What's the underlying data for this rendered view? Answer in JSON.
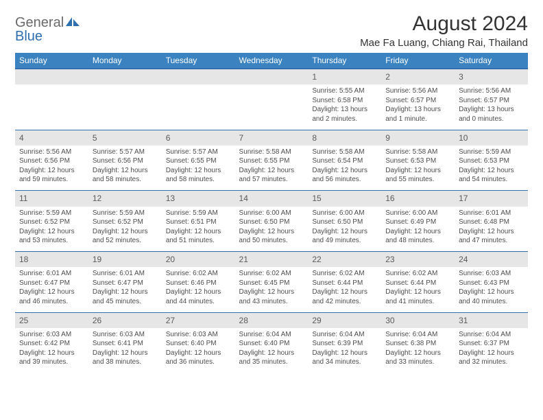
{
  "brand": {
    "part1": "General",
    "part2": "Blue"
  },
  "title": "August 2024",
  "location": "Mae Fa Luang, Chiang Rai, Thailand",
  "colors": {
    "header_bg": "#3b83c0",
    "header_border": "#2f6fb0",
    "row_shade": "#e6e6e6",
    "text": "#4d4d4d",
    "brand_gray": "#6a6a6a",
    "brand_blue": "#2f6fb0"
  },
  "weekdays": [
    "Sunday",
    "Monday",
    "Tuesday",
    "Wednesday",
    "Thursday",
    "Friday",
    "Saturday"
  ],
  "weeks": [
    {
      "nums": [
        "",
        "",
        "",
        "",
        "1",
        "2",
        "3"
      ],
      "cells": [
        null,
        null,
        null,
        null,
        {
          "sunrise": "5:55 AM",
          "sunset": "6:58 PM",
          "daylight": "13 hours and 2 minutes."
        },
        {
          "sunrise": "5:56 AM",
          "sunset": "6:57 PM",
          "daylight": "13 hours and 1 minute."
        },
        {
          "sunrise": "5:56 AM",
          "sunset": "6:57 PM",
          "daylight": "13 hours and 0 minutes."
        }
      ]
    },
    {
      "nums": [
        "4",
        "5",
        "6",
        "7",
        "8",
        "9",
        "10"
      ],
      "cells": [
        {
          "sunrise": "5:56 AM",
          "sunset": "6:56 PM",
          "daylight": "12 hours and 59 minutes."
        },
        {
          "sunrise": "5:57 AM",
          "sunset": "6:56 PM",
          "daylight": "12 hours and 58 minutes."
        },
        {
          "sunrise": "5:57 AM",
          "sunset": "6:55 PM",
          "daylight": "12 hours and 58 minutes."
        },
        {
          "sunrise": "5:58 AM",
          "sunset": "6:55 PM",
          "daylight": "12 hours and 57 minutes."
        },
        {
          "sunrise": "5:58 AM",
          "sunset": "6:54 PM",
          "daylight": "12 hours and 56 minutes."
        },
        {
          "sunrise": "5:58 AM",
          "sunset": "6:53 PM",
          "daylight": "12 hours and 55 minutes."
        },
        {
          "sunrise": "5:59 AM",
          "sunset": "6:53 PM",
          "daylight": "12 hours and 54 minutes."
        }
      ]
    },
    {
      "nums": [
        "11",
        "12",
        "13",
        "14",
        "15",
        "16",
        "17"
      ],
      "cells": [
        {
          "sunrise": "5:59 AM",
          "sunset": "6:52 PM",
          "daylight": "12 hours and 53 minutes."
        },
        {
          "sunrise": "5:59 AM",
          "sunset": "6:52 PM",
          "daylight": "12 hours and 52 minutes."
        },
        {
          "sunrise": "5:59 AM",
          "sunset": "6:51 PM",
          "daylight": "12 hours and 51 minutes."
        },
        {
          "sunrise": "6:00 AM",
          "sunset": "6:50 PM",
          "daylight": "12 hours and 50 minutes."
        },
        {
          "sunrise": "6:00 AM",
          "sunset": "6:50 PM",
          "daylight": "12 hours and 49 minutes."
        },
        {
          "sunrise": "6:00 AM",
          "sunset": "6:49 PM",
          "daylight": "12 hours and 48 minutes."
        },
        {
          "sunrise": "6:01 AM",
          "sunset": "6:48 PM",
          "daylight": "12 hours and 47 minutes."
        }
      ]
    },
    {
      "nums": [
        "18",
        "19",
        "20",
        "21",
        "22",
        "23",
        "24"
      ],
      "cells": [
        {
          "sunrise": "6:01 AM",
          "sunset": "6:47 PM",
          "daylight": "12 hours and 46 minutes."
        },
        {
          "sunrise": "6:01 AM",
          "sunset": "6:47 PM",
          "daylight": "12 hours and 45 minutes."
        },
        {
          "sunrise": "6:02 AM",
          "sunset": "6:46 PM",
          "daylight": "12 hours and 44 minutes."
        },
        {
          "sunrise": "6:02 AM",
          "sunset": "6:45 PM",
          "daylight": "12 hours and 43 minutes."
        },
        {
          "sunrise": "6:02 AM",
          "sunset": "6:44 PM",
          "daylight": "12 hours and 42 minutes."
        },
        {
          "sunrise": "6:02 AM",
          "sunset": "6:44 PM",
          "daylight": "12 hours and 41 minutes."
        },
        {
          "sunrise": "6:03 AM",
          "sunset": "6:43 PM",
          "daylight": "12 hours and 40 minutes."
        }
      ]
    },
    {
      "nums": [
        "25",
        "26",
        "27",
        "28",
        "29",
        "30",
        "31"
      ],
      "cells": [
        {
          "sunrise": "6:03 AM",
          "sunset": "6:42 PM",
          "daylight": "12 hours and 39 minutes."
        },
        {
          "sunrise": "6:03 AM",
          "sunset": "6:41 PM",
          "daylight": "12 hours and 38 minutes."
        },
        {
          "sunrise": "6:03 AM",
          "sunset": "6:40 PM",
          "daylight": "12 hours and 36 minutes."
        },
        {
          "sunrise": "6:04 AM",
          "sunset": "6:40 PM",
          "daylight": "12 hours and 35 minutes."
        },
        {
          "sunrise": "6:04 AM",
          "sunset": "6:39 PM",
          "daylight": "12 hours and 34 minutes."
        },
        {
          "sunrise": "6:04 AM",
          "sunset": "6:38 PM",
          "daylight": "12 hours and 33 minutes."
        },
        {
          "sunrise": "6:04 AM",
          "sunset": "6:37 PM",
          "daylight": "12 hours and 32 minutes."
        }
      ]
    }
  ]
}
